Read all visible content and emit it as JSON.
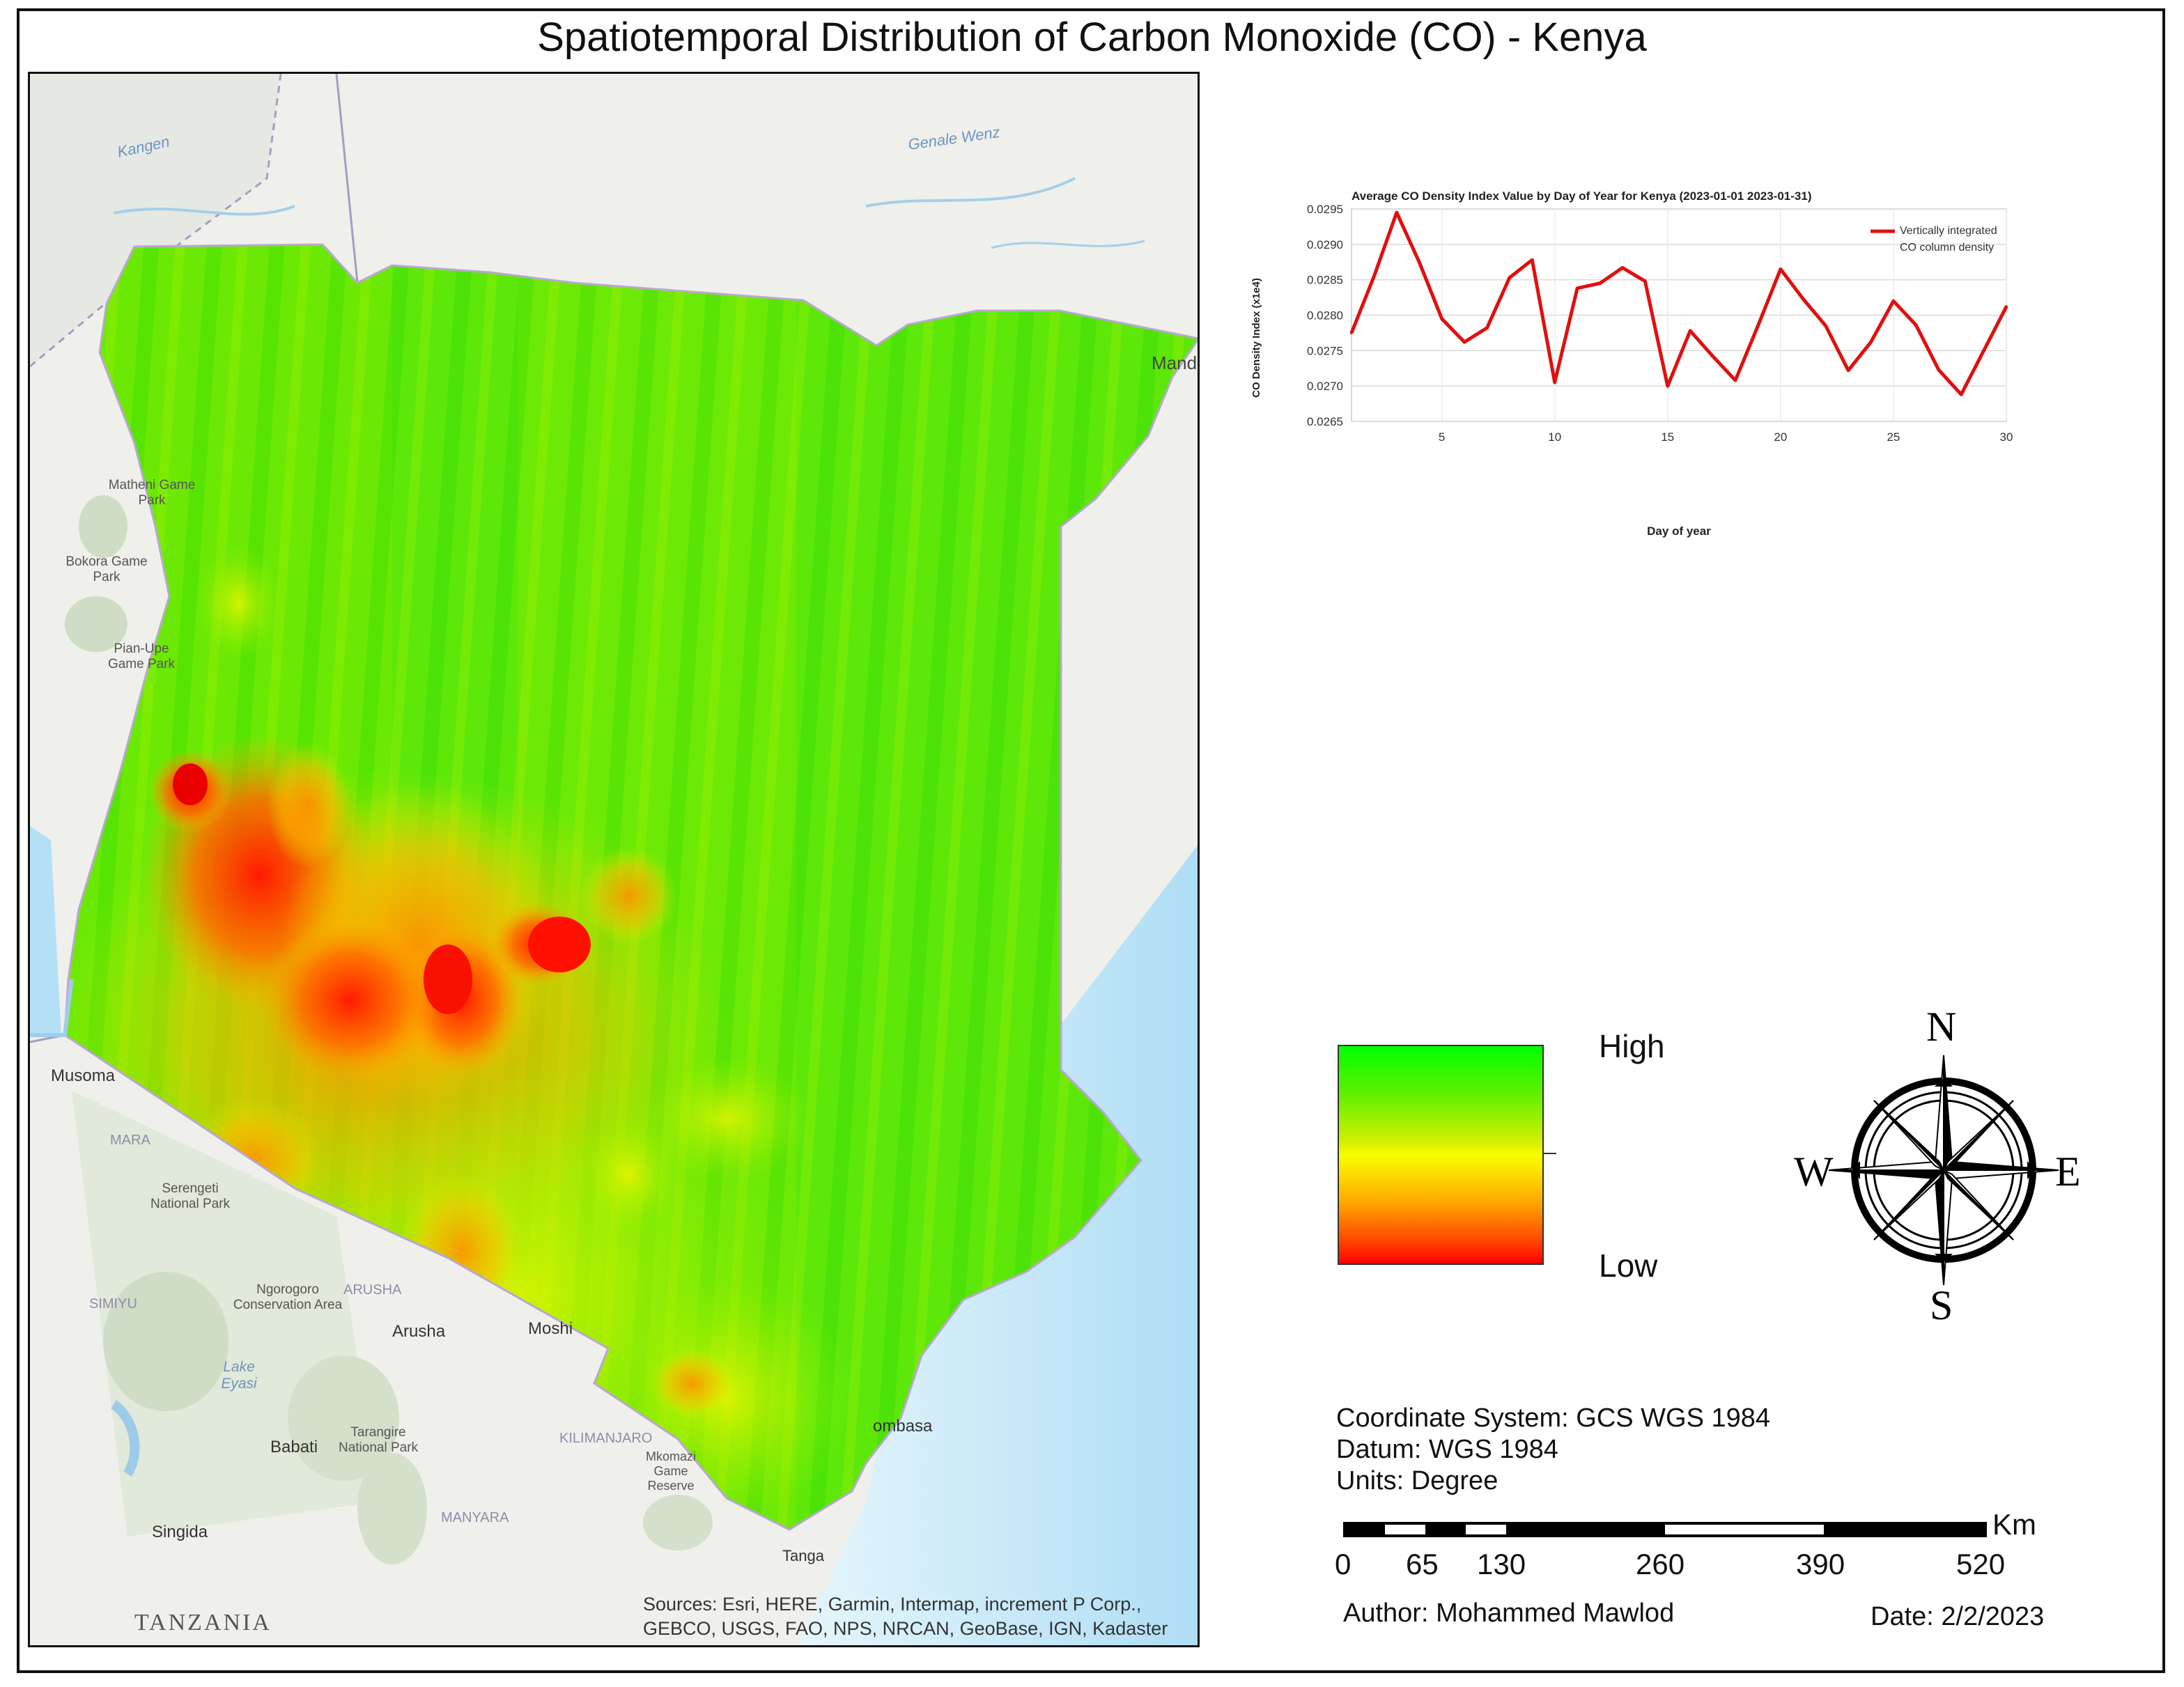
{
  "map": {
    "title": "Spatiotemporal Distribution of Carbon Monoxide (CO) - Kenya",
    "basemap_labels": {
      "river_kangen": "Kangen",
      "river_genale": "Genale Wenz",
      "city_mandera": "Mand",
      "park_matheni": "Matheni Game Park",
      "park_boma": "Bokora Game Park",
      "park_pian_upe": "Pian-Upe Game Park",
      "city_musoma": "Musoma",
      "region_mara": "MARA",
      "park_serengeti": "Serengeti National Park",
      "park_ngorongoro": "Ngorogoro Conservation Area",
      "region_simiyu": "SIMIYU",
      "region_arusha": "ARUSHA",
      "city_arusha": "Arusha",
      "city_moshi": "Moshi",
      "lake_eyasi": "Lake Eyasi",
      "city_babati": "Babati",
      "park_tarangire": "Tarangire National Park",
      "region_kilimanjaro": "KILIMANJARO",
      "park_mkomazi": "Mkomazi Game Reserve",
      "city_mombasa": "ombasa",
      "region_manyara": "MANYARA",
      "city_singida": "Singida",
      "country_tanzania": "TANZANIA",
      "city_tanga": "Tanga"
    },
    "sources": "Sources: Esri, HERE, Garmin, Intermap, increment P Corp., GEBCO, USGS, FAO, NPS, NRCAN, GeoBase, IGN, Kadaster NL, Ordnance Survey, Esri Japan, METI, Esri China (Hong Kong), (c) OpenStreetMap contributors, and the GIS User Community"
  },
  "chart_data": {
    "type": "line",
    "title": "Average CO Density Index Value by Day of Year for Kenya (2023-01-01 2023-01-31)",
    "xlabel": "Day of year",
    "ylabel": "CO Density Index (x1e4)",
    "xlim": [
      1,
      30
    ],
    "ylim": [
      0.0265,
      0.0295
    ],
    "x_ticks": [
      "5",
      "10",
      "15",
      "20",
      "25",
      "30"
    ],
    "y_ticks": [
      "0.0265",
      "0.0270",
      "0.0275",
      "0.0280",
      "0.0285",
      "0.0290",
      "0.0295"
    ],
    "grid": true,
    "legend_position": "right",
    "series": [
      {
        "name": "Vertically integrated CO column density",
        "color": "#e01010",
        "x": [
          1,
          2,
          3,
          4,
          5,
          6,
          7,
          8,
          9,
          10,
          11,
          12,
          13,
          14,
          15,
          16,
          17,
          18,
          19,
          20,
          21,
          22,
          23,
          24,
          25,
          26,
          27,
          28,
          29,
          30
        ],
        "values": [
          0.02775,
          0.02855,
          0.02945,
          0.02875,
          0.02795,
          0.02762,
          0.02782,
          0.02853,
          0.02878,
          0.02705,
          0.02838,
          0.02845,
          0.02867,
          0.02848,
          0.027,
          0.02778,
          0.02742,
          0.02708,
          0.02785,
          0.02865,
          0.02823,
          0.02785,
          0.02722,
          0.02762,
          0.0282,
          0.02786,
          0.02723,
          0.02688,
          0.0275,
          0.02812
        ]
      }
    ]
  },
  "legend": {
    "high": "High",
    "low": "Low",
    "colors": [
      "#00ff00",
      "#f8ff00",
      "#ff0000"
    ]
  },
  "compass": {
    "n": "N",
    "s": "S",
    "e": "E",
    "w": "W"
  },
  "info": {
    "coordinate_system": "Coordinate System: GCS WGS 1984",
    "datum": "Datum: WGS 1984",
    "units": "Units: Degree",
    "author": "Author: Mohammed Mawlod",
    "date": "Date: 2/2/2023"
  },
  "scalebar": {
    "unit": "Km",
    "labels": [
      "0",
      "65",
      "130",
      "260",
      "390",
      "520"
    ]
  }
}
